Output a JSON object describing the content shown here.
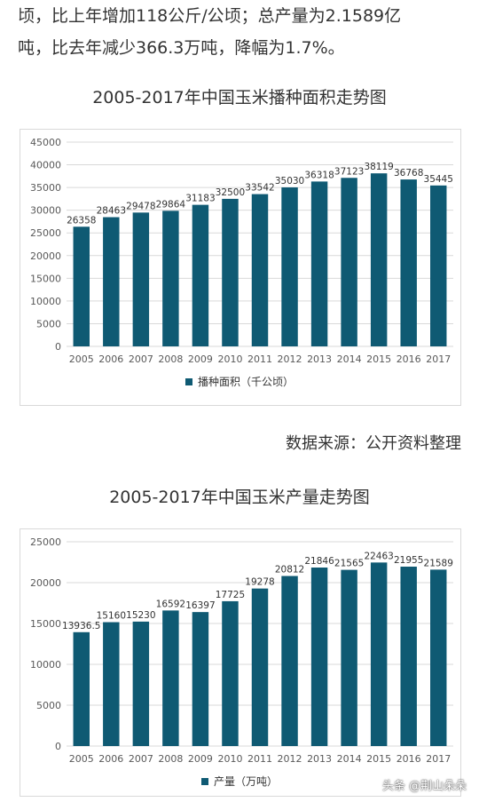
{
  "intro": {
    "line1": "顷，比上年增加118公斤/公顷；总产量为2.1589亿",
    "line2": "吨，比去年减少366.3万吨，降幅为1.7%。"
  },
  "source": "数据来源：公开资料整理",
  "watermark": "头条 @荆山朵朵",
  "colors": {
    "bar": "#0f5a73",
    "grid": "#d9d9d9",
    "axis_text": "#595959"
  },
  "chart_data": [
    {
      "type": "bar",
      "title": "2005-2017年中国玉米播种面积走势图",
      "categories": [
        "2005",
        "2006",
        "2007",
        "2008",
        "2009",
        "2010",
        "2011",
        "2012",
        "2013",
        "2014",
        "2015",
        "2016",
        "2017"
      ],
      "series": [
        {
          "name": "播种面积（千公顷）",
          "values": [
            26358,
            28463,
            29478,
            29864,
            31183,
            32500,
            33542,
            35030,
            36318,
            37123,
            38119,
            36768,
            35445
          ]
        }
      ],
      "value_labels": [
        "26358",
        "28463",
        "29478",
        "29864",
        "31183",
        "32500",
        "33542",
        "35030",
        "36318",
        "37123",
        "38119",
        "36768",
        "35445"
      ],
      "ylim": [
        0,
        45000
      ],
      "yticks": [
        0,
        5000,
        10000,
        15000,
        20000,
        25000,
        30000,
        35000,
        40000,
        45000
      ],
      "grid": true,
      "legend": "bottom"
    },
    {
      "type": "bar",
      "title": "2005-2017年中国玉米产量走势图",
      "categories": [
        "2005",
        "2006",
        "2007",
        "2008",
        "2009",
        "2010",
        "2011",
        "2012",
        "2013",
        "2014",
        "2015",
        "2016",
        "2017"
      ],
      "series": [
        {
          "name": "产量（万吨）",
          "values": [
            13936.5,
            15160,
            15230,
            16592,
            16397,
            17725,
            19278,
            20812,
            21846,
            21565,
            22463,
            21955,
            21589
          ]
        }
      ],
      "value_labels": [
        "13936.5",
        "15160",
        "15230",
        "16592",
        "16397",
        "17725",
        "19278",
        "20812",
        "21846",
        "21565",
        "22463",
        "21955",
        "21589"
      ],
      "ylim": [
        0,
        25000
      ],
      "yticks": [
        0,
        5000,
        10000,
        15000,
        20000,
        25000
      ],
      "grid": true,
      "legend": "bottom"
    }
  ]
}
